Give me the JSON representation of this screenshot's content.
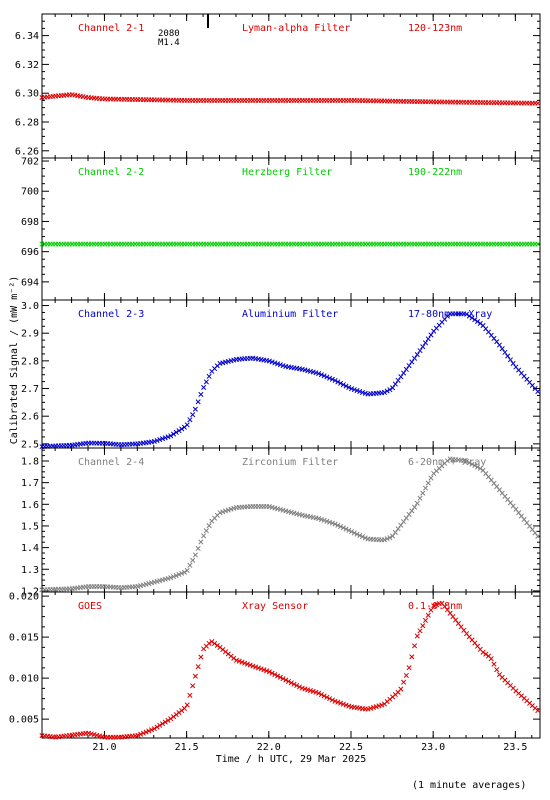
{
  "figure": {
    "ylabel": "Calibrated Signal / (mW m⁻²)",
    "xlabel": "Time / h UTC, 29 Mar 2025",
    "footnote": "(1 minute averages)",
    "marker": {
      "code": "2080",
      "label": "M1.4",
      "x": 21.63
    }
  },
  "chart_data": [
    {
      "type": "scatter",
      "name": "Channel 2-1",
      "filter": "Lyman-alpha Filter",
      "band": "120-123nm",
      "color": "#dd0000",
      "ylim": [
        6.255,
        6.355
      ],
      "yticks": [
        6.26,
        6.28,
        6.3,
        6.32,
        6.34
      ],
      "ytick_labels": [
        "6.26",
        "6.28",
        "6.30",
        "6.32",
        "6.34"
      ],
      "points": [
        [
          20.62,
          6.297
        ],
        [
          20.7,
          6.298
        ],
        [
          20.8,
          6.299
        ],
        [
          20.9,
          6.297
        ],
        [
          21.0,
          6.296
        ],
        [
          21.5,
          6.295
        ],
        [
          22.0,
          6.295
        ],
        [
          22.5,
          6.295
        ],
        [
          23.0,
          6.294
        ],
        [
          23.65,
          6.293
        ]
      ]
    },
    {
      "type": "scatter",
      "name": "Channel 2-2",
      "filter": "Herzberg Filter",
      "band": "190-222nm",
      "color": "#00cc00",
      "ylim": [
        692.8,
        702.2
      ],
      "yticks": [
        694,
        696,
        698,
        700,
        702
      ],
      "ytick_labels": [
        "694",
        "696",
        "698",
        "700",
        "702"
      ],
      "points": [
        [
          20.62,
          696.5
        ],
        [
          21.0,
          696.5
        ],
        [
          21.5,
          696.5
        ],
        [
          22.0,
          696.5
        ],
        [
          22.5,
          696.5
        ],
        [
          23.0,
          696.5
        ],
        [
          23.65,
          696.5
        ]
      ]
    },
    {
      "type": "scatter",
      "name": "Channel 2-3",
      "filter": "Aluminium Filter",
      "band": "17-80nm + Xray",
      "color": "#0000cc",
      "ylim": [
        2.485,
        3.02
      ],
      "yticks": [
        2.5,
        2.6,
        2.7,
        2.8,
        2.9,
        3.0
      ],
      "ytick_labels": [
        "2.5",
        "2.6",
        "2.7",
        "2.8",
        "2.9",
        "3.0"
      ],
      "points": [
        [
          20.62,
          2.49
        ],
        [
          20.8,
          2.495
        ],
        [
          20.9,
          2.503
        ],
        [
          21.0,
          2.502
        ],
        [
          21.1,
          2.497
        ],
        [
          21.2,
          2.5
        ],
        [
          21.3,
          2.508
        ],
        [
          21.4,
          2.528
        ],
        [
          21.5,
          2.565
        ],
        [
          21.55,
          2.62
        ],
        [
          21.6,
          2.7
        ],
        [
          21.65,
          2.76
        ],
        [
          21.7,
          2.79
        ],
        [
          21.8,
          2.805
        ],
        [
          21.9,
          2.81
        ],
        [
          22.0,
          2.8
        ],
        [
          22.1,
          2.78
        ],
        [
          22.2,
          2.77
        ],
        [
          22.3,
          2.755
        ],
        [
          22.4,
          2.73
        ],
        [
          22.5,
          2.7
        ],
        [
          22.6,
          2.68
        ],
        [
          22.7,
          2.685
        ],
        [
          22.75,
          2.7
        ],
        [
          22.8,
          2.74
        ],
        [
          22.9,
          2.82
        ],
        [
          23.0,
          2.905
        ],
        [
          23.1,
          2.97
        ],
        [
          23.2,
          2.97
        ],
        [
          23.3,
          2.93
        ],
        [
          23.4,
          2.86
        ],
        [
          23.5,
          2.78
        ],
        [
          23.65,
          2.68
        ]
      ]
    },
    {
      "type": "scatter",
      "name": "Channel 2-4",
      "filter": "Zirconium Filter",
      "band": "6-20nm + Xray",
      "color": "#7f7f7f",
      "ylim": [
        1.195,
        1.86
      ],
      "yticks": [
        1.2,
        1.3,
        1.4,
        1.5,
        1.6,
        1.7,
        1.8
      ],
      "ytick_labels": [
        "1.2",
        "1.3",
        "1.4",
        "1.5",
        "1.6",
        "1.7",
        "1.8"
      ],
      "points": [
        [
          20.62,
          1.205
        ],
        [
          20.8,
          1.21
        ],
        [
          20.9,
          1.22
        ],
        [
          21.0,
          1.22
        ],
        [
          21.1,
          1.215
        ],
        [
          21.2,
          1.22
        ],
        [
          21.3,
          1.24
        ],
        [
          21.4,
          1.26
        ],
        [
          21.5,
          1.29
        ],
        [
          21.55,
          1.36
        ],
        [
          21.6,
          1.45
        ],
        [
          21.65,
          1.52
        ],
        [
          21.7,
          1.56
        ],
        [
          21.8,
          1.585
        ],
        [
          21.9,
          1.59
        ],
        [
          22.0,
          1.59
        ],
        [
          22.1,
          1.57
        ],
        [
          22.2,
          1.55
        ],
        [
          22.3,
          1.535
        ],
        [
          22.4,
          1.51
        ],
        [
          22.5,
          1.475
        ],
        [
          22.6,
          1.44
        ],
        [
          22.7,
          1.435
        ],
        [
          22.75,
          1.45
        ],
        [
          22.8,
          1.5
        ],
        [
          22.9,
          1.6
        ],
        [
          23.0,
          1.74
        ],
        [
          23.1,
          1.81
        ],
        [
          23.2,
          1.8
        ],
        [
          23.3,
          1.76
        ],
        [
          23.4,
          1.67
        ],
        [
          23.5,
          1.58
        ],
        [
          23.65,
          1.44
        ]
      ]
    },
    {
      "type": "scatter",
      "name": "GOES",
      "filter": "Xray Sensor",
      "band": "0.1-0.8nm",
      "color": "#dd0000",
      "ylim": [
        0.0027,
        0.0205
      ],
      "yticks": [
        0.005,
        0.01,
        0.015,
        0.02
      ],
      "ytick_labels": [
        "0.005",
        "0.010",
        "0.015",
        "0.020"
      ],
      "points": [
        [
          20.62,
          0.003
        ],
        [
          20.7,
          0.0028
        ],
        [
          20.9,
          0.0033
        ],
        [
          21.0,
          0.0028
        ],
        [
          21.1,
          0.0028
        ],
        [
          21.2,
          0.003
        ],
        [
          21.3,
          0.0038
        ],
        [
          21.4,
          0.005
        ],
        [
          21.5,
          0.0065
        ],
        [
          21.55,
          0.01
        ],
        [
          21.6,
          0.0135
        ],
        [
          21.65,
          0.0145
        ],
        [
          21.7,
          0.0138
        ],
        [
          21.8,
          0.0122
        ],
        [
          21.9,
          0.0115
        ],
        [
          22.0,
          0.0108
        ],
        [
          22.1,
          0.0098
        ],
        [
          22.2,
          0.0088
        ],
        [
          22.3,
          0.0082
        ],
        [
          22.4,
          0.0072
        ],
        [
          22.5,
          0.0065
        ],
        [
          22.6,
          0.0062
        ],
        [
          22.7,
          0.0068
        ],
        [
          22.8,
          0.0085
        ],
        [
          22.85,
          0.011
        ],
        [
          22.9,
          0.015
        ],
        [
          23.0,
          0.0188
        ],
        [
          23.05,
          0.0192
        ],
        [
          23.1,
          0.018
        ],
        [
          23.2,
          0.0155
        ],
        [
          23.3,
          0.0132
        ],
        [
          23.35,
          0.0125
        ],
        [
          23.4,
          0.0105
        ],
        [
          23.5,
          0.0085
        ],
        [
          23.65,
          0.0058
        ]
      ]
    }
  ],
  "xaxis": {
    "xlim": [
      20.62,
      23.65
    ],
    "ticks": [
      21.0,
      21.5,
      22.0,
      22.5,
      23.0,
      23.5
    ],
    "tick_labels": [
      "21.0",
      "21.5",
      "22.0",
      "22.5",
      "23.0",
      "23.5"
    ]
  }
}
